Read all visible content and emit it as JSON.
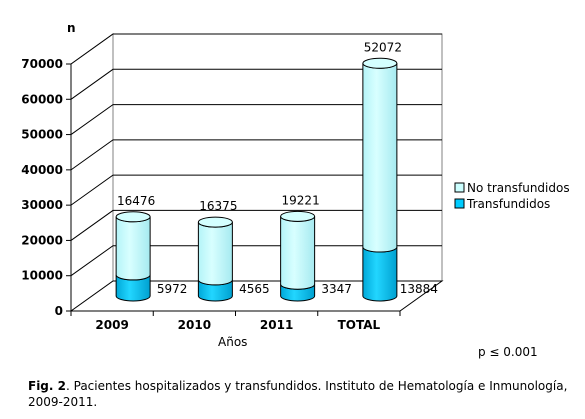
{
  "chart_data": {
    "type": "bar",
    "stacked": true,
    "style": "3d-cylinder",
    "categories": [
      "2009",
      "2010",
      "2011",
      "TOTAL"
    ],
    "series": [
      {
        "name": "Transfundidos",
        "values": [
          5972,
          4565,
          3347,
          13884
        ],
        "color": "#00ccff"
      },
      {
        "name": "No transfundidos",
        "values": [
          16476,
          16375,
          19221,
          52072
        ],
        "color": "#ccffff"
      }
    ],
    "ylabel": "n",
    "xlabel": "Años",
    "ylim": [
      0,
      70000
    ],
    "yticks": [
      "0",
      "10000",
      "20000",
      "30000",
      "40000",
      "50000",
      "60000",
      "70000"
    ],
    "grid": true,
    "legend_position": "right",
    "legend_order": [
      "No transfundidos",
      "Transfundidos"
    ]
  },
  "annotation": {
    "p_value": "p ≤ 0.001"
  },
  "caption": {
    "label": "Fig. 2",
    "text": ".  Pacientes hospitalizados y transfundidos. Instituto de Hematología e Inmunología, 2009-2011."
  }
}
